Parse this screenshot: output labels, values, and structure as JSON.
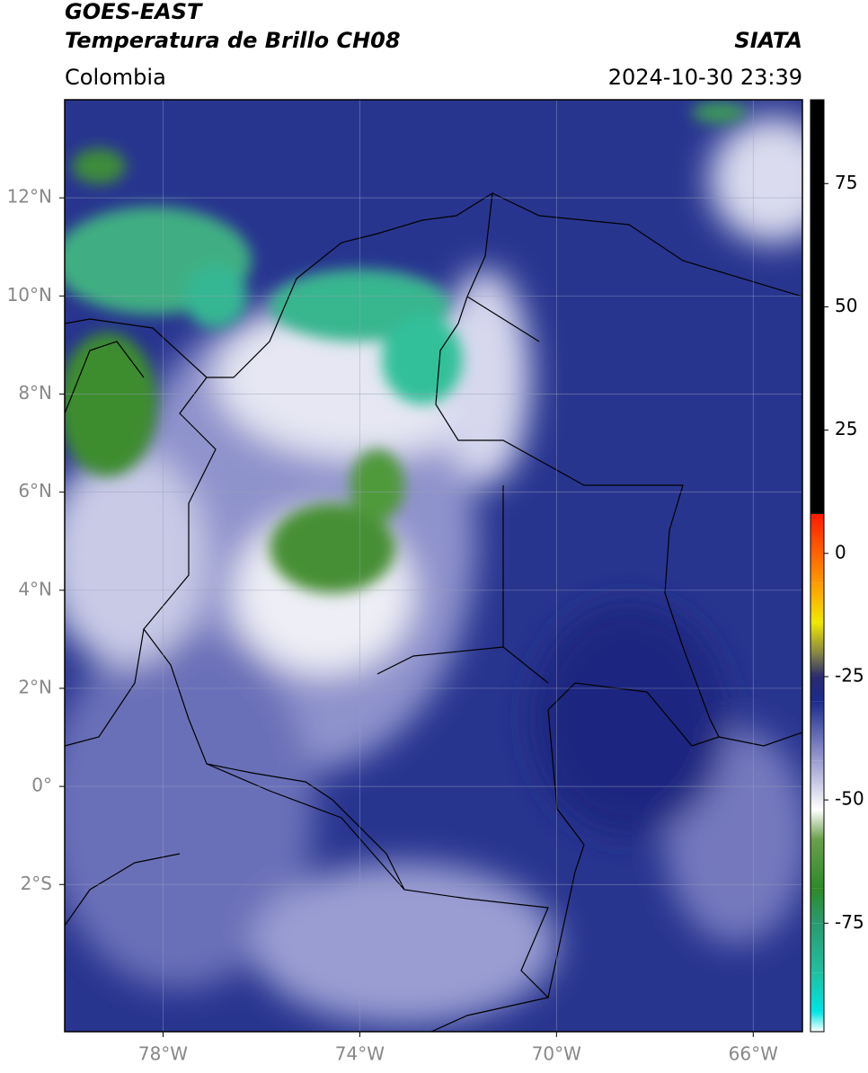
{
  "chart_data": {
    "type": "image",
    "title": "GOES-EAST",
    "subtitle": "Temperatura de Brillo CH08",
    "source": "SIATA",
    "region": "Colombia",
    "timestamp": "2024-10-30 23:39",
    "xlim": [
      -80,
      -65
    ],
    "ylim": [
      -5,
      14
    ],
    "xticks": [
      {
        "value": -78,
        "label": "78°W"
      },
      {
        "value": -74,
        "label": "74°W"
      },
      {
        "value": -70,
        "label": "70°W"
      },
      {
        "value": -66,
        "label": "66°W"
      }
    ],
    "yticks": [
      {
        "value": 12,
        "label": "12°N"
      },
      {
        "value": 10,
        "label": "10°N"
      },
      {
        "value": 8,
        "label": "8°N"
      },
      {
        "value": 6,
        "label": "6°N"
      },
      {
        "value": 4,
        "label": "4°N"
      },
      {
        "value": 2,
        "label": "2°N"
      },
      {
        "value": 0,
        "label": "0°"
      },
      {
        "value": -2,
        "label": "2°S"
      }
    ],
    "grid": true,
    "clim": [
      -97,
      92
    ],
    "cticks": [
      75,
      50,
      25,
      0,
      -25,
      -50,
      -75
    ],
    "colormap": [
      [
        -97,
        "#ffffff"
      ],
      [
        -93,
        "#00e5e5"
      ],
      [
        -85,
        "#1fc0a0"
      ],
      [
        -75,
        "#2a9a70"
      ],
      [
        -68,
        "#2e8a28"
      ],
      [
        -58,
        "#6aa04a"
      ],
      [
        -52,
        "#ffffff"
      ],
      [
        -42,
        "#9a9cd0"
      ],
      [
        -30,
        "#1c2b8c"
      ],
      [
        -25,
        "#2a2a70"
      ],
      [
        -20,
        "#8a8a40"
      ],
      [
        -14,
        "#f0e800"
      ],
      [
        -6,
        "#ff9900"
      ],
      [
        8,
        "#ff1a00"
      ],
      [
        8,
        "#000000"
      ],
      [
        92,
        "#000000"
      ]
    ]
  }
}
